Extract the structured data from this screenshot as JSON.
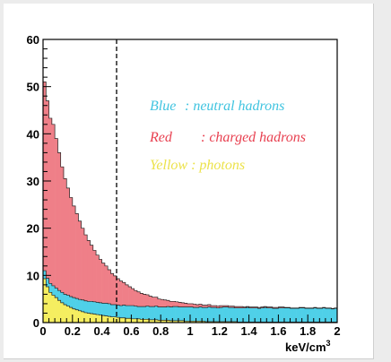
{
  "chart_data": {
    "type": "area",
    "xlabel": "keV/cm",
    "xlabel_sup": "3",
    "ylabel": "",
    "xlim": [
      0,
      2
    ],
    "ylim": [
      0,
      60
    ],
    "x_ticks": [
      "0",
      "0.2",
      "0.4",
      "0.6",
      "0.8",
      "1",
      "1.2",
      "1.4",
      "1.6",
      "1.8",
      "2"
    ],
    "y_ticks": [
      "0",
      "10",
      "20",
      "30",
      "40",
      "50",
      "60"
    ],
    "cut_line_x": 0.5,
    "stacking": "yellow (bottom) + cyan + red (top)",
    "bin_width": 0.02,
    "x": [
      0.01,
      0.03,
      0.05,
      0.07,
      0.09,
      0.11,
      0.13,
      0.15,
      0.17,
      0.19,
      0.21,
      0.23,
      0.25,
      0.27,
      0.29,
      0.31,
      0.33,
      0.35,
      0.37,
      0.39,
      0.41,
      0.43,
      0.45,
      0.47,
      0.49,
      0.51,
      0.53,
      0.55,
      0.57,
      0.59,
      0.61,
      0.63,
      0.65,
      0.67,
      0.69,
      0.71,
      0.73,
      0.75,
      0.77,
      0.79,
      0.81,
      0.83,
      0.85,
      0.87,
      0.89,
      0.91,
      0.93,
      0.95,
      0.97,
      0.99,
      1.01,
      1.03,
      1.05,
      1.07,
      1.09,
      1.11,
      1.13,
      1.15,
      1.17,
      1.19,
      1.21,
      1.23,
      1.25,
      1.27,
      1.29,
      1.31,
      1.33,
      1.35,
      1.37,
      1.39,
      1.41,
      1.43,
      1.45,
      1.47,
      1.49,
      1.51,
      1.53,
      1.55,
      1.57,
      1.59,
      1.61,
      1.63,
      1.65,
      1.67,
      1.69,
      1.71,
      1.73,
      1.75,
      1.77,
      1.79,
      1.81,
      1.83,
      1.85,
      1.87,
      1.89,
      1.91,
      1.93,
      1.95,
      1.97,
      1.99
    ],
    "series": [
      {
        "name": "Yellow : photons",
        "color": "#f5ee60",
        "values": [
          9.3,
          7.6,
          6.4,
          5.8,
          5.3,
          4.7,
          4.2,
          3.8,
          3.5,
          3.2,
          2.9,
          2.7,
          2.5,
          2.3,
          2.1,
          2.0,
          1.9,
          1.8,
          1.7,
          1.6,
          1.5,
          1.4,
          1.3,
          1.2,
          1.2,
          1.1,
          1.0,
          1.0,
          0.9,
          0.9,
          0.8,
          0.8,
          0.8,
          0.7,
          0.7,
          0.7,
          0.6,
          0.6,
          0.6,
          0.5,
          0.5,
          0.5,
          0.5,
          0.4,
          0.4,
          0.4,
          0.4,
          0.4,
          0.3,
          0.3,
          0.3,
          0.3,
          0.3,
          0.3,
          0.3,
          0.2,
          0.2,
          0.2,
          0.2,
          0.2,
          0.2,
          0.2,
          0.2,
          0.2,
          0.2,
          0.2,
          0.1,
          0.1,
          0.1,
          0.1,
          0.1,
          0.1,
          0.1,
          0.1,
          0.1,
          0.1,
          0.1,
          0.1,
          0.1,
          0.1,
          0.1,
          0.1,
          0.1,
          0.1,
          0.1,
          0.1,
          0.1,
          0.1,
          0.1,
          0.1,
          0.1,
          0.1,
          0.1,
          0.1,
          0.1,
          0.1,
          0.1,
          0.1,
          0.1,
          0.1
        ]
      },
      {
        "name": "Blue : neutral hadrons",
        "color": "#4fd0e8",
        "values": [
          1.7,
          1.8,
          1.9,
          2.0,
          2.0,
          2.1,
          2.2,
          2.2,
          2.3,
          2.3,
          2.4,
          2.4,
          2.4,
          2.5,
          2.5,
          2.5,
          2.6,
          2.6,
          2.6,
          2.6,
          2.6,
          2.7,
          2.7,
          2.6,
          2.6,
          2.6,
          2.6,
          2.7,
          2.7,
          2.7,
          2.8,
          2.7,
          2.6,
          2.7,
          2.7,
          2.8,
          2.8,
          2.8,
          2.9,
          2.8,
          2.8,
          2.8,
          2.9,
          2.9,
          3.0,
          3.0,
          2.9,
          2.9,
          3.0,
          3.0,
          3.0,
          2.9,
          2.9,
          3.0,
          2.9,
          3.0,
          3.1,
          3.0,
          3.0,
          2.9,
          3.0,
          3.1,
          3.1,
          3.0,
          3.0,
          2.9,
          3.0,
          3.0,
          3.0,
          3.1,
          3.0,
          3.0,
          3.0,
          2.9,
          3.0,
          3.1,
          3.0,
          3.0,
          2.9,
          2.9,
          3.0,
          3.0,
          3.0,
          3.0,
          2.9,
          2.9,
          2.9,
          3.0,
          3.0,
          2.9,
          2.9,
          2.9,
          3.0,
          2.9,
          2.9,
          3.0,
          2.9,
          2.9,
          2.8,
          2.9
        ]
      },
      {
        "name": "Red : charged hadrons",
        "color": "#ef7f88",
        "values": [
          40.0,
          37.6,
          35.0,
          34.2,
          31.7,
          29.2,
          26.6,
          24.5,
          22.7,
          21.0,
          19.4,
          18.0,
          16.6,
          15.2,
          14.0,
          12.9,
          11.9,
          10.9,
          10.0,
          9.2,
          8.5,
          7.9,
          7.2,
          6.6,
          6.1,
          5.6,
          5.2,
          4.8,
          4.4,
          4.0,
          3.6,
          3.3,
          3.1,
          2.8,
          2.6,
          2.4,
          2.2,
          2.0,
          1.9,
          1.7,
          1.6,
          1.5,
          1.3,
          1.2,
          1.1,
          1.0,
          1.0,
          0.9,
          0.8,
          0.7,
          0.7,
          0.7,
          0.6,
          0.6,
          0.5,
          0.5,
          0.5,
          0.4,
          0.4,
          0.4,
          0.4,
          0.3,
          0.3,
          0.3,
          0.3,
          0.3,
          0.3,
          0.3,
          0.2,
          0.2,
          0.2,
          0.2,
          0.2,
          0.2,
          0.2,
          0.2,
          0.2,
          0.2,
          0.2,
          0.2,
          0.2,
          0.2,
          0.1,
          0.1,
          0.1,
          0.1,
          0.1,
          0.1,
          0.1,
          0.1,
          0.1,
          0.1,
          0.1,
          0.1,
          0.1,
          0.1,
          0.1,
          0.1,
          0.1,
          0.1
        ]
      }
    ],
    "legend": [
      {
        "label_name": "Blue",
        "label_sep": ": neutral hadrons",
        "color": "#40c4e0"
      },
      {
        "label_name": "Red",
        "label_sep": ": charged hadrons",
        "color": "#e84050"
      },
      {
        "label_name": "Yellow",
        "label_sep": ": photons",
        "color": "#ece24a"
      }
    ],
    "legend_placement": "upper-right inside plot",
    "grid": false
  }
}
